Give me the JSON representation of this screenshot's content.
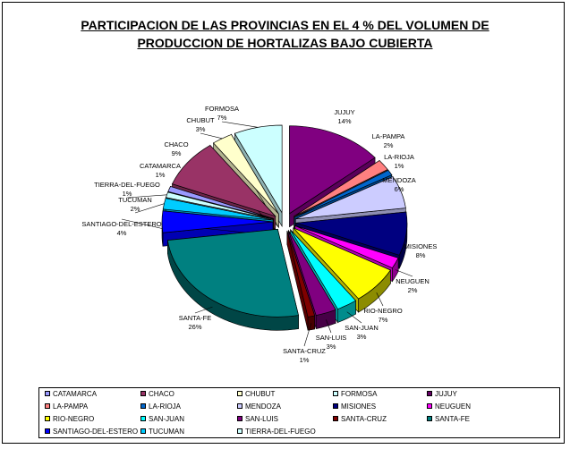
{
  "title_line1": "PARTICIPACION DE LAS PROVINCIAS EN EL 4 % DEL VOLUMEN DE",
  "title_line2": "PRODUCCION DE HORTALIZAS BAJO CUBIERTA",
  "chart_data": {
    "type": "pie",
    "title": "PARTICIPACION DE LAS PROVINCIAS EN EL 4 % DEL VOLUMEN DE PRODUCCION DE HORTALIZAS BAJO CUBIERTA",
    "style": "3d-exploded",
    "legend_position": "bottom",
    "slices": [
      {
        "label": "JUJUY",
        "value": 14,
        "pct": "14%",
        "color": "#800080"
      },
      {
        "label": "LA-PAMPA",
        "value": 2,
        "pct": "2%",
        "color": "#FF8080"
      },
      {
        "label": "LA-RIOJA",
        "value": 1,
        "pct": "1%",
        "color": "#0066CC"
      },
      {
        "label": "MENDOZA",
        "value": 6,
        "pct": "6%",
        "color": "#CCCCFF"
      },
      {
        "label": "MISIONES",
        "value": 8,
        "pct": "8%",
        "color": "#000080"
      },
      {
        "label": "NEUGUEN",
        "value": 2,
        "pct": "2%",
        "color": "#FF00FF"
      },
      {
        "label": "RIO-NEGRO",
        "value": 7,
        "pct": "7%",
        "color": "#FFFF00"
      },
      {
        "label": "SAN-JUAN",
        "value": 3,
        "pct": "3%",
        "color": "#00FFFF"
      },
      {
        "label": "SAN-LUIS",
        "value": 3,
        "pct": "3%",
        "color": "#800080"
      },
      {
        "label": "SANTA-CRUZ",
        "value": 1,
        "pct": "1%",
        "color": "#800000"
      },
      {
        "label": "SANTA-FE",
        "value": 26,
        "pct": "26%",
        "color": "#008080"
      },
      {
        "label": "SANTIAGO-DEL-ESTERO",
        "value": 4,
        "pct": "4%",
        "color": "#0000FF"
      },
      {
        "label": "TUCUMAN",
        "value": 2,
        "pct": "2%",
        "color": "#00CCFF"
      },
      {
        "label": "TIERRA-DEL-FUEGO",
        "value": 1,
        "pct": "1%",
        "color": "#CCFFFF"
      },
      {
        "label": "CATAMARCA",
        "value": 1,
        "pct": "1%",
        "color": "#9999FF"
      },
      {
        "label": "CHACO",
        "value": 9,
        "pct": "9%",
        "color": "#993366"
      },
      {
        "label": "CHUBUT",
        "value": 3,
        "pct": "3%",
        "color": "#FFFFCC"
      },
      {
        "label": "FORMOSA",
        "value": 7,
        "pct": "7%",
        "color": "#CCFFFF"
      }
    ],
    "legend": [
      {
        "label": "CATAMARCA",
        "color": "#9999FF"
      },
      {
        "label": "CHACO",
        "color": "#993366"
      },
      {
        "label": "CHUBUT",
        "color": "#FFFFCC"
      },
      {
        "label": "FORMOSA",
        "color": "#CCFFFF"
      },
      {
        "label": "JUJUY",
        "color": "#660066"
      },
      {
        "label": "LA-PAMPA",
        "color": "#FF8080"
      },
      {
        "label": "LA-RIOJA",
        "color": "#0066CC"
      },
      {
        "label": "MENDOZA",
        "color": "#CCCCFF"
      },
      {
        "label": "MISIONES",
        "color": "#000080"
      },
      {
        "label": "NEUGUEN",
        "color": "#FF00FF"
      },
      {
        "label": "RIO-NEGRO",
        "color": "#FFFF00"
      },
      {
        "label": "SAN-JUAN",
        "color": "#00FFFF"
      },
      {
        "label": "SAN-LUIS",
        "color": "#800080"
      },
      {
        "label": "SANTA-CRUZ",
        "color": "#800000"
      },
      {
        "label": "SANTA-FE",
        "color": "#008080"
      },
      {
        "label": "SANTIAGO-DEL-ESTERO",
        "color": "#0000FF"
      },
      {
        "label": "TUCUMAN",
        "color": "#00CCFF"
      },
      {
        "label": "TIERRA-DEL-FUEGO",
        "color": "#CCFFFF"
      }
    ]
  }
}
